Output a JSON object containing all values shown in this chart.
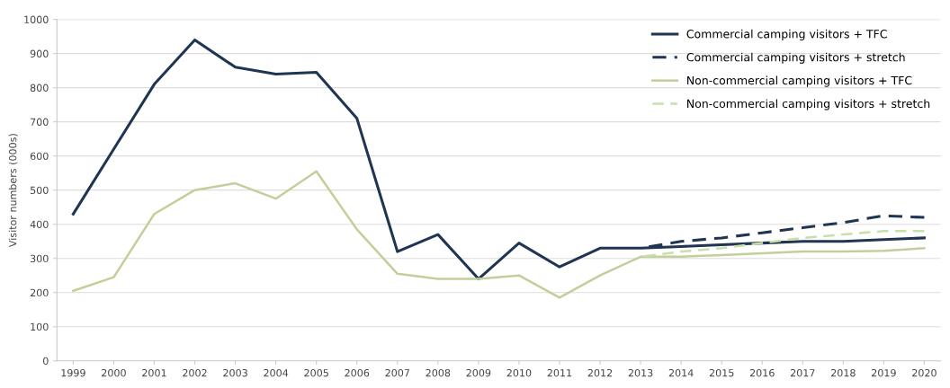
{
  "chart_data": {
    "type": "line",
    "ylabel": "Visitor numbers (000s)",
    "categories": [
      "1999",
      "2000",
      "2001",
      "2002",
      "2003",
      "2004",
      "2005",
      "2006",
      "2007",
      "2008",
      "2009",
      "2010",
      "2011",
      "2012",
      "2013",
      "2014",
      "2015",
      "2016",
      "2017",
      "2018",
      "2019",
      "2020"
    ],
    "series": [
      {
        "name": "Commercial camping visitors + TFC",
        "color": "#1f3552",
        "line_style": "solid",
        "values": [
          430,
          620,
          810,
          940,
          860,
          840,
          845,
          710,
          320,
          370,
          240,
          345,
          275,
          330,
          330,
          335,
          340,
          345,
          350,
          350,
          355,
          360
        ]
      },
      {
        "name": "Commercial camping visitors + stretch",
        "color": "#1f3552",
        "line_style": "dashed",
        "values": [
          null,
          null,
          null,
          null,
          null,
          null,
          null,
          null,
          null,
          null,
          null,
          null,
          null,
          null,
          330,
          350,
          360,
          375,
          390,
          405,
          425,
          420
        ]
      },
      {
        "name": "Non-commercial camping visitors + TFC",
        "color": "#c3cf9a",
        "line_style": "solid",
        "values": [
          205,
          245,
          430,
          500,
          520,
          475,
          555,
          385,
          255,
          240,
          240,
          250,
          185,
          250,
          305,
          305,
          310,
          315,
          320,
          320,
          322,
          330
        ]
      },
      {
        "name": "Non-commercial camping visitors + stretch",
        "color": "#c7e0a8",
        "line_style": "dashed",
        "values": [
          null,
          null,
          null,
          null,
          null,
          null,
          null,
          null,
          null,
          null,
          null,
          null,
          null,
          null,
          305,
          320,
          330,
          345,
          360,
          370,
          380,
          380
        ]
      }
    ],
    "ylim": [
      0,
      1000
    ],
    "yticks": [
      0,
      100,
      200,
      300,
      400,
      500,
      600,
      700,
      800,
      900,
      1000
    ],
    "grid": "y",
    "legend": "top right",
    "marker": "none"
  }
}
